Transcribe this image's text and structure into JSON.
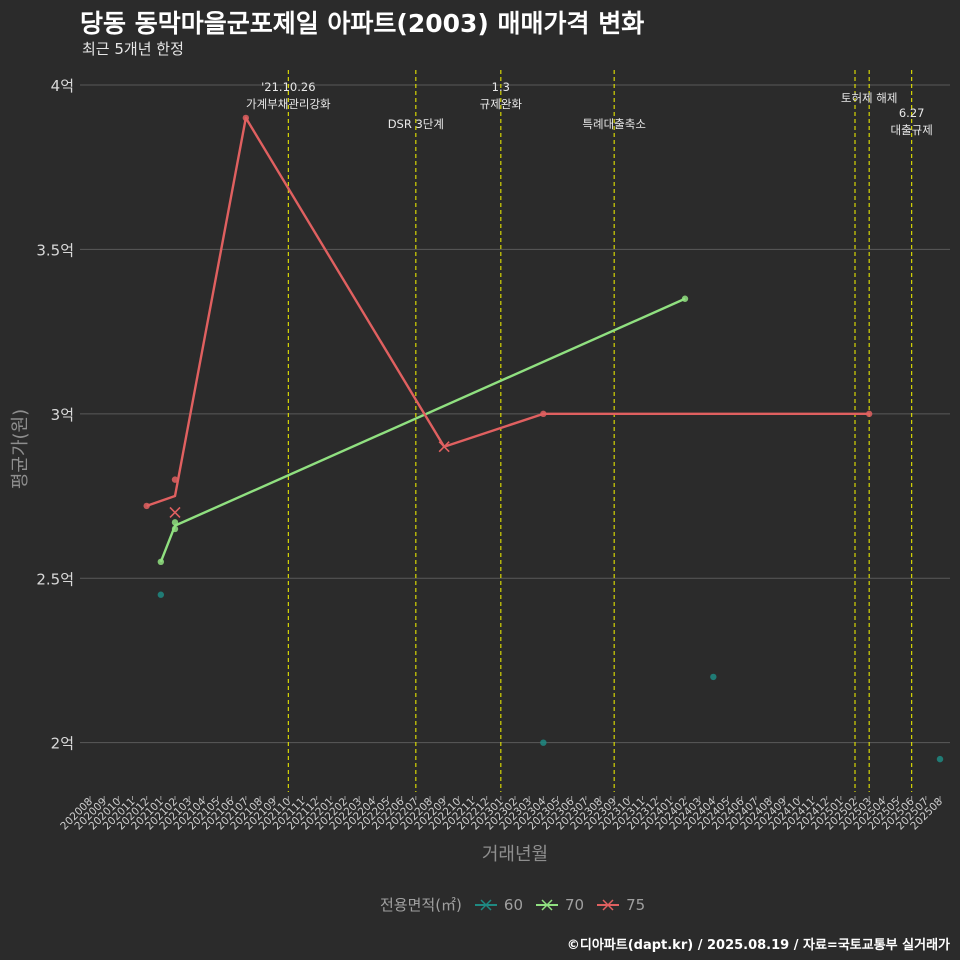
{
  "chart_data": {
    "type": "line",
    "title": "당동 동막마을군포제일 아파트(2003) 매매가격 변화",
    "subtitle": "최근 5개년 한정",
    "xlabel": "거래년월",
    "ylabel": "평균가(원)",
    "categories": [
      "202008",
      "202009",
      "202010",
      "202011",
      "202012",
      "202101",
      "202102",
      "202103",
      "202104",
      "202105",
      "202106",
      "202107",
      "202108",
      "202109",
      "202110",
      "202111",
      "202112",
      "202201",
      "202202",
      "202203",
      "202204",
      "202205",
      "202206",
      "202207",
      "202208",
      "202209",
      "202210",
      "202211",
      "202212",
      "202301",
      "202302",
      "202303",
      "202304",
      "202305",
      "202306",
      "202307",
      "202308",
      "202309",
      "202310",
      "202311",
      "202312",
      "202401",
      "202402",
      "202403",
      "202404",
      "202405",
      "202406",
      "202407",
      "202408",
      "202409",
      "202410",
      "202411",
      "202412",
      "202501",
      "202502",
      "202503",
      "202504",
      "202505",
      "202506",
      "202507",
      "202508"
    ],
    "y_ticks": [
      {
        "value": 2.0,
        "label": "2억"
      },
      {
        "value": 2.5,
        "label": "2.5억"
      },
      {
        "value": 3.0,
        "label": "3억"
      },
      {
        "value": 3.5,
        "label": "3.5억"
      },
      {
        "value": 4.0,
        "label": "4억"
      }
    ],
    "ylim": [
      1.85,
      4.07
    ],
    "y_unit": "억",
    "grid": true,
    "legend": {
      "title": "전용면적(㎡)",
      "placement": "bottom"
    },
    "series": [
      {
        "name": "60",
        "color": "#1f8a82",
        "line": [],
        "points": [
          [
            "202101",
            2.45
          ],
          [
            "202304",
            2.0
          ],
          [
            "202404",
            2.2
          ],
          [
            "202508",
            1.95
          ]
        ],
        "cross": []
      },
      {
        "name": "70",
        "color": "#90e080",
        "line": [
          [
            "202101",
            2.55
          ],
          [
            "202102",
            2.66
          ],
          [
            "202402",
            3.35
          ]
        ],
        "points": [
          [
            "202101",
            2.55
          ],
          [
            "202102",
            2.67
          ],
          [
            "202102",
            2.65
          ],
          [
            "202402",
            3.35
          ]
        ],
        "cross": []
      },
      {
        "name": "75",
        "color": "#e06060",
        "line": [
          [
            "202012",
            2.72
          ],
          [
            "202102",
            2.75
          ],
          [
            "202107",
            3.9
          ],
          [
            "202209",
            2.9
          ],
          [
            "202304",
            3.0
          ],
          [
            "202503",
            3.0
          ]
        ],
        "points": [
          [
            "202012",
            2.72
          ],
          [
            "202102",
            2.8
          ],
          [
            "202107",
            3.9
          ],
          [
            "202304",
            3.0
          ],
          [
            "202503",
            3.0
          ]
        ],
        "cross": [
          [
            "202102",
            2.7
          ],
          [
            "202209",
            2.9
          ]
        ]
      }
    ],
    "events": [
      {
        "x": "202110",
        "label": [
          "'21.10.26",
          "가계부채관리강화"
        ],
        "row": 0
      },
      {
        "x": "202207",
        "label": [
          "DSR 3단계"
        ],
        "row": 2
      },
      {
        "x": "202301",
        "label": [
          "1.3",
          "규제완화"
        ],
        "row": 0
      },
      {
        "x": "202309",
        "label": [
          "특례대출축소"
        ],
        "row": 2
      },
      {
        "x": "202502",
        "label": [],
        "row": 0
      },
      {
        "x": "202503",
        "label": [
          "토허제 해제"
        ],
        "row": 1
      },
      {
        "x": "202506",
        "label": [
          "6.27",
          "대출규제"
        ],
        "row": 3
      }
    ]
  },
  "caption": "©디아파트(dapt.kr) / 2025.08.19 / 자료=국토교통부 실거래가",
  "colors": {
    "background": "#2b2b2b",
    "grid": "#5a5a5a",
    "event_line": "#e6e600"
  }
}
